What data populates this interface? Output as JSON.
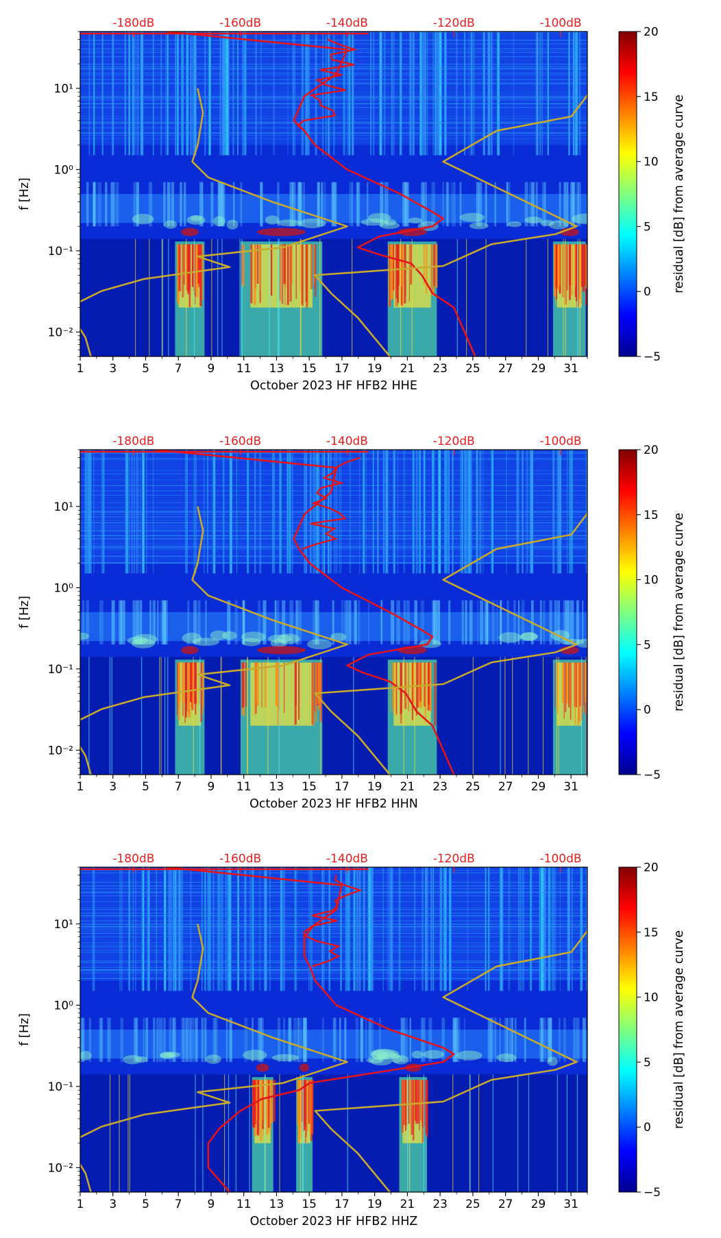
{
  "figure": {
    "month": "October 2023",
    "network": "HF",
    "station": "HFB2"
  },
  "colors": {
    "top_axis": "#ee1c1c",
    "mean_curve": "#e5141a",
    "low_noise_model": "#c6a92d",
    "colormap": [
      "#00008f",
      "#0000ff",
      "#0080ff",
      "#00ffff",
      "#80ff80",
      "#ffff00",
      "#ff8000",
      "#ff0000",
      "#800000"
    ]
  },
  "chart_data": [
    {
      "type": "heatmap",
      "channel": "HHE",
      "xlabel": "October 2023 HF HFB2  HHE",
      "ylabel": "f [Hz]",
      "xticks": [
        1,
        3,
        5,
        7,
        9,
        11,
        13,
        15,
        17,
        19,
        21,
        23,
        25,
        27,
        29,
        31
      ],
      "xlim": [
        1,
        32
      ],
      "yscale": "log",
      "ylim": [
        0.005,
        50
      ],
      "yticks": [
        "10⁻²",
        "10⁻¹",
        "10⁰",
        "10¹"
      ],
      "top_axis_labels": [
        "-180dB",
        "-160dB",
        "-140dB",
        "-120dB",
        "-100dB"
      ],
      "top_axis_values_dB": [
        -180,
        -160,
        -140,
        -120,
        -100
      ],
      "colorbar": {
        "label": "residual [dB] from average curve",
        "ticks": [
          -5,
          0,
          5,
          10,
          15,
          20
        ],
        "range": [
          -5,
          20
        ]
      },
      "high_activity_days": [
        [
          6.8,
          8.6
        ],
        [
          10.8,
          15.8
        ],
        [
          19.8,
          22.8
        ],
        [
          29.9,
          31.9
        ]
      ],
      "mean_curve": {
        "freq_hz": [
          50,
          30,
          15,
          8,
          4,
          3,
          2,
          1,
          0.5,
          0.3,
          0.25,
          0.2,
          0.15,
          0.11,
          0.09,
          0.07,
          0.05,
          0.03,
          0.02,
          0.01,
          0.005
        ],
        "dB": [
          -174,
          -140,
          -142,
          -148,
          -150,
          -148,
          -146,
          -140,
          -130,
          -124,
          -122,
          -124,
          -134,
          -138,
          -134,
          -128,
          -126,
          -124,
          -120,
          -118,
          -116
        ]
      },
      "noise_model_curve": {
        "freq_hz": [
          10,
          5,
          2,
          1.25,
          0.8,
          0.4,
          0.2,
          0.11,
          0.085,
          0.063,
          0.045,
          0.032,
          0.022,
          0.014,
          0.0085,
          0.005
        ],
        "dB": [
          -168,
          -167,
          -168,
          -169,
          -166,
          -154,
          -140,
          -152,
          -168,
          -162,
          -178,
          -186,
          -191,
          -191,
          -189,
          -188
        ]
      },
      "noise_model_curve_2": {
        "freq_hz": [
          10,
          4.5,
          3,
          1.25,
          0.2,
          0.16,
          0.12,
          0.065,
          0.05,
          0.03,
          0.015,
          0.005
        ],
        "dB": [
          -94,
          -98,
          -112,
          -122,
          -97,
          -101,
          -113,
          -122,
          -146,
          -143,
          -138,
          -132
        ]
      }
    },
    {
      "type": "heatmap",
      "channel": "HHN",
      "xlabel": "October 2023 HF HFB2  HHN",
      "ylabel": "f [Hz]",
      "xticks": [
        1,
        3,
        5,
        7,
        9,
        11,
        13,
        15,
        17,
        19,
        21,
        23,
        25,
        27,
        29,
        31
      ],
      "xlim": [
        1,
        32
      ],
      "yscale": "log",
      "ylim": [
        0.005,
        50
      ],
      "yticks": [
        "10⁻²",
        "10⁻¹",
        "10⁰",
        "10¹"
      ],
      "top_axis_labels": [
        "-180dB",
        "-160dB",
        "-140dB",
        "-120dB",
        "-100dB"
      ],
      "top_axis_values_dB": [
        -180,
        -160,
        -140,
        -120,
        -100
      ],
      "colorbar": {
        "label": "residual [dB] from average curve",
        "ticks": [
          -5,
          0,
          5,
          10,
          15,
          20
        ],
        "range": [
          -5,
          20
        ]
      },
      "high_activity_days": [
        [
          6.8,
          8.6
        ],
        [
          10.8,
          15.8
        ],
        [
          19.8,
          22.8
        ],
        [
          29.9,
          31.9
        ]
      ],
      "mean_curve": {
        "freq_hz": [
          50,
          30,
          15,
          8,
          4,
          3,
          2,
          1,
          0.5,
          0.3,
          0.25,
          0.2,
          0.15,
          0.11,
          0.09,
          0.07,
          0.05,
          0.03,
          0.02,
          0.01,
          0.005
        ],
        "dB": [
          -176,
          -142,
          -143,
          -148,
          -150,
          -149,
          -147,
          -141,
          -132,
          -126,
          -124,
          -125,
          -136,
          -140,
          -137,
          -132,
          -129,
          -127,
          -124,
          -122,
          -120
        ]
      },
      "noise_model_curve": {
        "freq_hz": [
          10,
          5,
          2,
          1.25,
          0.8,
          0.4,
          0.2,
          0.11,
          0.085,
          0.063,
          0.045,
          0.032,
          0.022,
          0.014,
          0.0085,
          0.005
        ],
        "dB": [
          -168,
          -167,
          -168,
          -169,
          -166,
          -154,
          -140,
          -152,
          -168,
          -162,
          -178,
          -186,
          -191,
          -191,
          -189,
          -188
        ]
      },
      "noise_model_curve_2": {
        "freq_hz": [
          10,
          4.5,
          3,
          1.25,
          0.2,
          0.16,
          0.12,
          0.065,
          0.05,
          0.03,
          0.015,
          0.005
        ],
        "dB": [
          -94,
          -98,
          -112,
          -122,
          -97,
          -101,
          -113,
          -122,
          -146,
          -143,
          -138,
          -132
        ]
      }
    },
    {
      "type": "heatmap",
      "channel": "HHZ",
      "xlabel": "October 2023 HF HFB2  HHZ",
      "ylabel": "f [Hz]",
      "xticks": [
        1,
        3,
        5,
        7,
        9,
        11,
        13,
        15,
        17,
        19,
        21,
        23,
        25,
        27,
        29,
        31
      ],
      "xlim": [
        1,
        32
      ],
      "yscale": "log",
      "ylim": [
        0.005,
        50
      ],
      "yticks": [
        "10⁻²",
        "10⁻¹",
        "10⁰",
        "10¹"
      ],
      "top_axis_labels": [
        "-180dB",
        "-160dB",
        "-140dB",
        "-120dB",
        "-100dB"
      ],
      "top_axis_values_dB": [
        -180,
        -160,
        -140,
        -120,
        -100
      ],
      "colorbar": {
        "label": "residual [dB] from average curve",
        "ticks": [
          -5,
          0,
          5,
          10,
          15,
          20
        ],
        "range": [
          -5,
          20
        ]
      },
      "high_activity_days": [
        [
          11.5,
          12.8
        ],
        [
          14.2,
          15.2
        ],
        [
          20.5,
          22.2
        ]
      ],
      "mean_curve": {
        "freq_hz": [
          50,
          30,
          15,
          8,
          4,
          3,
          2,
          1,
          0.5,
          0.3,
          0.25,
          0.2,
          0.15,
          0.11,
          0.09,
          0.07,
          0.05,
          0.03,
          0.02,
          0.01,
          0.005
        ],
        "dB": [
          -174,
          -141,
          -142,
          -148,
          -148,
          -147,
          -146,
          -142,
          -132,
          -122,
          -120,
          -122,
          -134,
          -147,
          -149,
          -156,
          -160,
          -164,
          -166,
          -166,
          -162
        ]
      },
      "noise_model_curve": {
        "freq_hz": [
          10,
          5,
          2,
          1.25,
          0.8,
          0.4,
          0.2,
          0.11,
          0.085,
          0.063,
          0.045,
          0.032,
          0.022,
          0.014,
          0.0085,
          0.005
        ],
        "dB": [
          -168,
          -167,
          -168,
          -169,
          -166,
          -154,
          -140,
          -152,
          -168,
          -162,
          -178,
          -186,
          -191,
          -191,
          -189,
          -188
        ]
      },
      "noise_model_curve_2": {
        "freq_hz": [
          10,
          4.5,
          3,
          1.25,
          0.2,
          0.16,
          0.12,
          0.065,
          0.05,
          0.03,
          0.015,
          0.005
        ],
        "dB": [
          -94,
          -98,
          -112,
          -122,
          -97,
          -101,
          -113,
          -122,
          -146,
          -143,
          -138,
          -132
        ]
      }
    }
  ]
}
